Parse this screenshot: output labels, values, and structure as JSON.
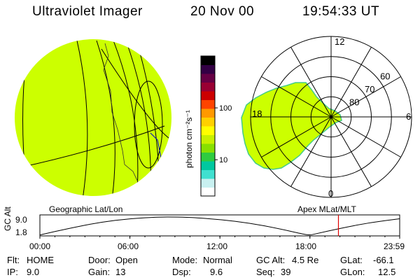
{
  "header": {
    "instrument": "Ultraviolet Imager",
    "date": "20 Nov 00",
    "time": "19:54:33 UT"
  },
  "colorbar": {
    "unit_label": "photon cm⁻²s⁻¹",
    "ticks": [
      {
        "label": "100",
        "value": 100
      },
      {
        "label": "10",
        "value": 10
      }
    ],
    "scale": "log",
    "range": [
      2,
      1000
    ],
    "colors": [
      "#ffffff",
      "#c8f0f0",
      "#40e0d0",
      "#00c8a0",
      "#2ecc40",
      "#88e000",
      "#c8f000",
      "#ffff00",
      "#ffd000",
      "#ff9900",
      "#ff4400",
      "#cc0000",
      "#990033",
      "#660044",
      "#330044",
      "#000000"
    ]
  },
  "panels": {
    "left_label": "Geographic Lat/Lon",
    "right_label": "Apex MLat/MLT"
  },
  "polar": {
    "mlt_labels": [
      {
        "label": "12",
        "mlt": 12
      },
      {
        "label": "18",
        "mlt": 18
      },
      {
        "label": "6",
        "mlt": 6
      },
      {
        "label": "0",
        "mlt": 0
      }
    ],
    "mlat_labels": [
      {
        "label": "60",
        "mlat": 60
      },
      {
        "label": "70",
        "mlat": 70
      },
      {
        "label": "80",
        "mlat": 80
      }
    ],
    "mlat_circles": [
      50,
      60,
      70,
      80
    ],
    "fill_color": "#ccff00"
  },
  "alt_plot": {
    "ylabel": "GC Alt",
    "yticks": [
      "9.0",
      "1.8"
    ],
    "yrange": [
      1.8,
      9.0
    ],
    "xticks": [
      "00:00",
      "06:00",
      "12:00",
      "18:00",
      "23:59"
    ],
    "current_time": "19:54",
    "marker_color": "#e00000"
  },
  "chart_data": {
    "type": "line",
    "title": "",
    "xlabel": "",
    "ylabel": "GC Alt",
    "x": [
      "00:00",
      "02:00",
      "04:00",
      "06:00",
      "08:00",
      "09:00",
      "10:00",
      "12:00",
      "14:00",
      "16:00",
      "17:30",
      "18:00",
      "18:30",
      "20:00",
      "22:00",
      "23:59"
    ],
    "y": [
      1.9,
      4.6,
      6.9,
      8.4,
      9.0,
      9.0,
      8.9,
      8.0,
      6.6,
      4.3,
      2.3,
      1.8,
      2.5,
      4.5,
      6.8,
      8.3
    ],
    "ylim": [
      1.8,
      9.0
    ],
    "series": [
      {
        "values": [
          1.9,
          4.6,
          6.9,
          8.4,
          9.0,
          9.0,
          8.9,
          8.0,
          6.6,
          4.3,
          2.3,
          1.8,
          2.5,
          4.5,
          6.8,
          8.3
        ]
      }
    ]
  },
  "status": {
    "flt_label": "Flt:",
    "flt_value": "HOME",
    "ip_label": "IP:",
    "ip_value": "9.0",
    "door_label": "Door:",
    "door_value": "Open",
    "gain_label": "Gain:",
    "gain_value": "13",
    "mode_label": "Mode:",
    "mode_value": "Normal",
    "dsp_label": "Dsp:",
    "dsp_value": "9.6",
    "gcalt_label": "GC Alt:",
    "gcalt_value": "4.5 Re",
    "seq_label": "Seq:",
    "seq_value": "39",
    "glat_label": "GLat:",
    "glat_value": "-66.1",
    "glon_label": "GLon:",
    "glon_value": "12.5"
  }
}
